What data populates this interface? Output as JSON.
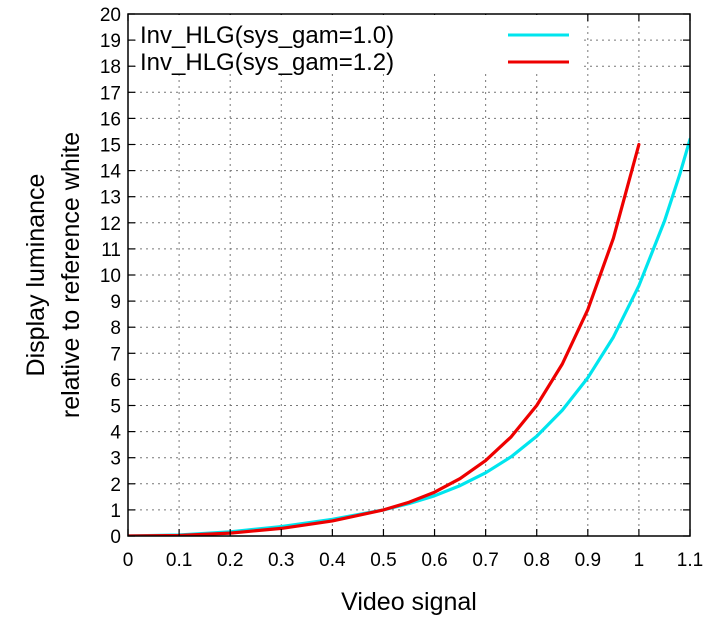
{
  "chart_data": {
    "type": "line",
    "title": "",
    "xlabel": "Video signal",
    "ylabel": "Display luminance",
    "ylabel_line2": "relative to reference white",
    "xlim": [
      0,
      1.1
    ],
    "ylim": [
      0,
      20
    ],
    "x_ticks": [
      "0",
      "0.1",
      "0.2",
      "0.3",
      "0.4",
      "0.5",
      "0.6",
      "0.7",
      "0.8",
      "0.9",
      "1",
      "1.1"
    ],
    "y_ticks": [
      "0",
      "1",
      "2",
      "3",
      "4",
      "5",
      "6",
      "7",
      "8",
      "9",
      "10",
      "11",
      "12",
      "13",
      "14",
      "15",
      "16",
      "17",
      "18",
      "19",
      "20"
    ],
    "grid": true,
    "legend": "top-left",
    "series": [
      {
        "name": "Inv_HLG(sys_gam=1.0)",
        "color": "#00e5ee",
        "x": [
          0,
          0.1,
          0.2,
          0.3,
          0.4,
          0.5,
          0.55,
          0.6,
          0.65,
          0.7,
          0.75,
          0.8,
          0.85,
          0.9,
          0.95,
          1.0,
          1.05,
          1.08,
          1.1
        ],
        "y": [
          0,
          0.04,
          0.16,
          0.36,
          0.64,
          1.0,
          1.24,
          1.54,
          1.93,
          2.42,
          3.04,
          3.82,
          4.82,
          6.06,
          7.62,
          9.59,
          12.07,
          13.86,
          15.2
        ]
      },
      {
        "name": "Inv_HLG(sys_gam=1.2)",
        "color": "#ee0000",
        "x": [
          0,
          0.1,
          0.2,
          0.3,
          0.4,
          0.5,
          0.55,
          0.6,
          0.65,
          0.7,
          0.75,
          0.8,
          0.85,
          0.9,
          0.95,
          1.0
        ],
        "y": [
          0,
          0.02,
          0.11,
          0.29,
          0.58,
          1.0,
          1.29,
          1.68,
          2.2,
          2.89,
          3.8,
          5.0,
          6.59,
          8.67,
          11.41,
          15.0
        ]
      }
    ]
  }
}
